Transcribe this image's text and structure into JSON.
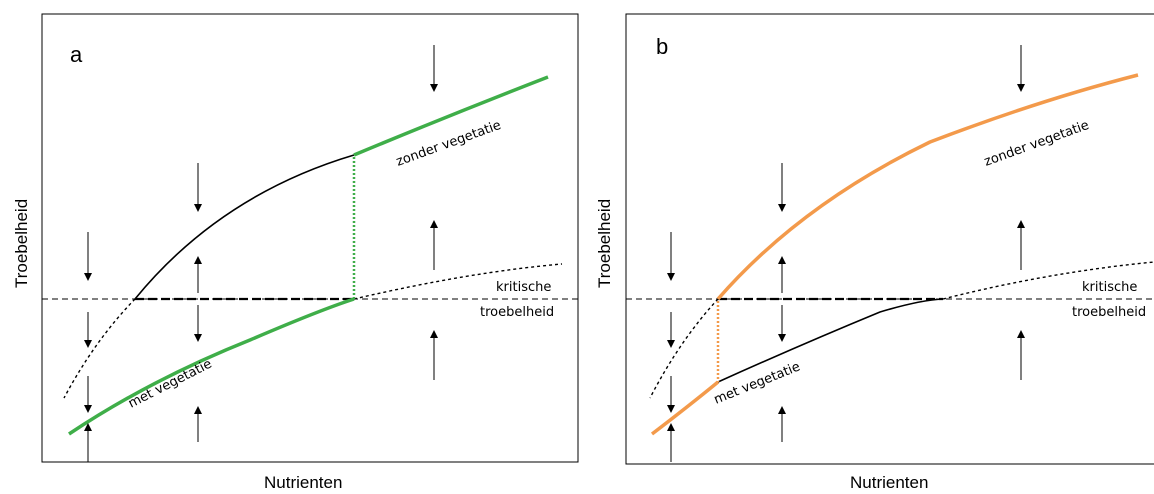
{
  "panels": [
    {
      "letter": "a",
      "upper_label": "zonder vegetatie",
      "lower_label": "met vegetatie",
      "critical_label_1": "kritische",
      "critical_label_2": "troebelheid",
      "highlight_color": "#3fae49"
    },
    {
      "letter": "b",
      "upper_label": "zonder vegetatie",
      "lower_label": "met vegetatie",
      "critical_label_1": "kritische",
      "critical_label_2": "troebelheid",
      "highlight_color": "#f39a4b"
    }
  ],
  "axes": {
    "y_label": "Troebelheid",
    "x_label": "Nutrienten"
  },
  "arrow_icon": "vertical-arrow-icon"
}
